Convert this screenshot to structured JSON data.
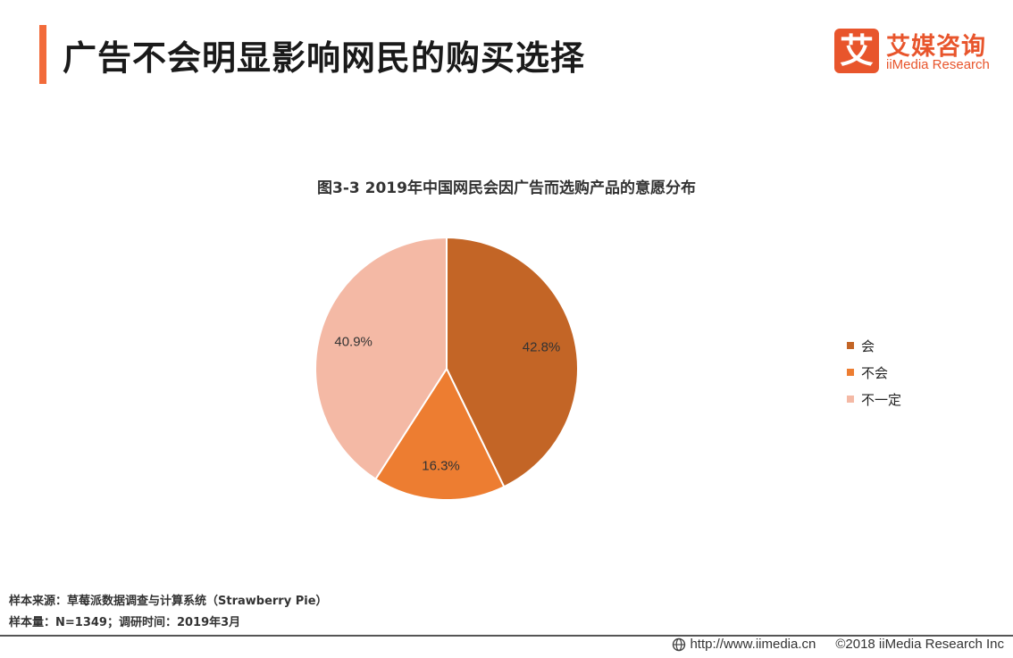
{
  "header": {
    "title": "广告不会明显影响网民的购买选择",
    "accent_color": "#f26b3a"
  },
  "logo": {
    "mark": "艾",
    "name_cn": "艾媒咨询",
    "name_en": "iiMedia Research",
    "color": "#e8552c"
  },
  "chart_data": {
    "type": "pie",
    "title": "图3-3 2019年中国网民会因广告而选购产品的意愿分布",
    "slices": [
      {
        "label": "会",
        "value": 42.8,
        "display": "42.8%",
        "color": "#c36526"
      },
      {
        "label": "不会",
        "value": 16.3,
        "display": "16.3%",
        "color": "#ed7d31"
      },
      {
        "label": "不一定",
        "value": 40.9,
        "display": "40.9%",
        "color": "#f4b9a5"
      }
    ],
    "legend_position": "right",
    "start_angle": "12 o'clock",
    "direction": "clockwise"
  },
  "footnotes": {
    "source": "样本来源：草莓派数据调查与计算系统（Strawberry Pie）",
    "sample": "样本量：N=1349；调研时间：2019年3月"
  },
  "footer": {
    "url": "http://www.iimedia.cn",
    "copyright": "©2018  iiMedia Research  Inc"
  }
}
